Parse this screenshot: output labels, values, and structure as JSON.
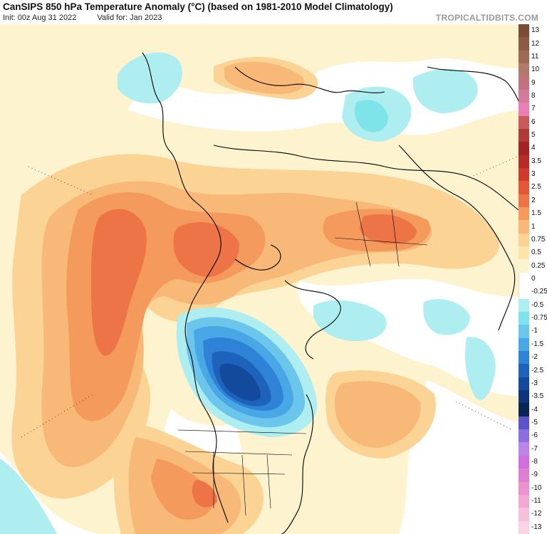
{
  "header": {
    "title": "CanSIPS 850 hPa Temperature Anomaly (°C) (based on 1981-2010 Model Climatology)",
    "init": "Init: 00z Aug 31 2022",
    "valid": "Valid for: Jan 2023",
    "brand": "TROPICALTIDBITS.COM"
  },
  "map": {
    "region": "northern-hemisphere-polar",
    "variable": "850 hPa temperature anomaly",
    "units": "°C"
  },
  "colorbar": {
    "items": [
      {
        "label": "13",
        "color": "#7a4b35"
      },
      {
        "label": "12",
        "color": "#8c5a45"
      },
      {
        "label": "11",
        "color": "#9e6a58"
      },
      {
        "label": "10",
        "color": "#b07b6c"
      },
      {
        "label": "9",
        "color": "#c0727e"
      },
      {
        "label": "8",
        "color": "#d47a9a"
      },
      {
        "label": "7",
        "color": "#e87fb5"
      },
      {
        "label": "6",
        "color": "#c95a5a"
      },
      {
        "label": "5",
        "color": "#b03a3a"
      },
      {
        "label": "4",
        "color": "#a12323"
      },
      {
        "label": "3.5",
        "color": "#b82a28"
      },
      {
        "label": "3",
        "color": "#cf3a2d"
      },
      {
        "label": "2.5",
        "color": "#e05838"
      },
      {
        "label": "2",
        "color": "#ec7446"
      },
      {
        "label": "1.5",
        "color": "#f49a5c"
      },
      {
        "label": "1",
        "color": "#f8b878"
      },
      {
        "label": "0.75",
        "color": "#fbd394"
      },
      {
        "label": "0.5",
        "color": "#fde4ad"
      },
      {
        "label": "0.25",
        "color": "#fef3cf"
      },
      {
        "label": "0",
        "color": "#ffffff"
      },
      {
        "label": "-0.25",
        "color": "#ffffff"
      },
      {
        "label": "-0.5",
        "color": "#aeeef0"
      },
      {
        "label": "-0.75",
        "color": "#7fe3ea"
      },
      {
        "label": "-1",
        "color": "#6cc6ec"
      },
      {
        "label": "-1.5",
        "color": "#4aa7e6"
      },
      {
        "label": "-2",
        "color": "#2e83d6"
      },
      {
        "label": "-2.5",
        "color": "#1d63bb"
      },
      {
        "label": "-3",
        "color": "#144a9c"
      },
      {
        "label": "-3.5",
        "color": "#0f3578"
      },
      {
        "label": "-4",
        "color": "#0a2456"
      },
      {
        "label": "-5",
        "color": "#5b54c9"
      },
      {
        "label": "-6",
        "color": "#8a6fe0"
      },
      {
        "label": "-7",
        "color": "#b985e6"
      },
      {
        "label": "-8",
        "color": "#cf6fe0"
      },
      {
        "label": "-9",
        "color": "#e07ed2"
      },
      {
        "label": "-10",
        "color": "#ea93cf"
      },
      {
        "label": "-11",
        "color": "#f1a8d4"
      },
      {
        "label": "-12",
        "color": "#f6bfdc"
      },
      {
        "label": "-13",
        "color": "#fad4e4"
      }
    ]
  }
}
